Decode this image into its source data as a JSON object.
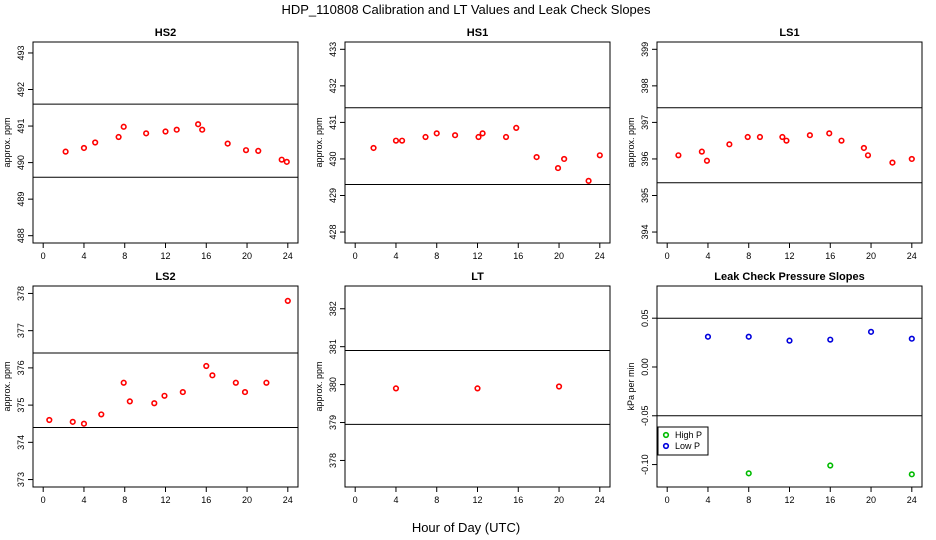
{
  "title": "HDP_110808  Calibration and LT Values and Leak Check Slopes",
  "xlabel": "Hour of Day (UTC)",
  "chart_data": [
    {
      "type": "scatter",
      "title": "HS2",
      "ylabel": "approx. ppm",
      "xlim": [
        -1,
        25
      ],
      "ylim": [
        487.8,
        493.3
      ],
      "xticks": [
        0,
        4,
        8,
        12,
        16,
        20,
        24
      ],
      "yticks": [
        488,
        489,
        490,
        491,
        492,
        493
      ],
      "hlines": [
        489.6,
        491.6
      ],
      "series": [
        {
          "color": "#ff0000",
          "x": [
            2.2,
            4,
            5.1,
            7.4,
            7.9,
            10.1,
            12,
            13.1,
            15.2,
            15.6,
            18.1,
            19.9,
            21.1,
            23.4,
            23.9
          ],
          "y": [
            490.3,
            490.4,
            490.55,
            490.7,
            490.98,
            490.8,
            490.85,
            490.9,
            491.05,
            490.9,
            490.52,
            490.34,
            490.32,
            490.08,
            490.02
          ]
        }
      ]
    },
    {
      "type": "scatter",
      "title": "HS1",
      "ylabel": "approx. ppm",
      "xlim": [
        -1,
        25
      ],
      "ylim": [
        427.7,
        433.2
      ],
      "xticks": [
        0,
        4,
        8,
        12,
        16,
        20,
        24
      ],
      "yticks": [
        428,
        429,
        430,
        431,
        432,
        433
      ],
      "hlines": [
        429.3,
        431.4
      ],
      "series": [
        {
          "color": "#ff0000",
          "x": [
            1.8,
            4,
            4.6,
            6.9,
            8,
            9.8,
            12.1,
            12.5,
            14.8,
            15.8,
            17.8,
            19.9,
            20.5,
            22.9,
            24
          ],
          "y": [
            430.3,
            430.5,
            430.5,
            430.6,
            430.7,
            430.65,
            430.6,
            430.7,
            430.6,
            430.85,
            430.05,
            429.75,
            430.0,
            429.4,
            430.1
          ]
        }
      ]
    },
    {
      "type": "scatter",
      "title": "LS1",
      "ylabel": "approx. ppm",
      "xlim": [
        -1,
        25
      ],
      "ylim": [
        393.7,
        399.2
      ],
      "xticks": [
        0,
        4,
        8,
        12,
        16,
        20,
        24
      ],
      "yticks": [
        394,
        395,
        396,
        397,
        398,
        399
      ],
      "hlines": [
        395.35,
        397.4
      ],
      "series": [
        {
          "color": "#ff0000",
          "x": [
            1.1,
            3.4,
            3.9,
            6.1,
            7.9,
            9.1,
            11.3,
            11.7,
            14,
            15.9,
            17.1,
            19.3,
            19.7,
            22.1,
            24
          ],
          "y": [
            396.1,
            396.2,
            395.95,
            396.4,
            396.6,
            396.6,
            396.6,
            396.5,
            396.65,
            396.7,
            396.5,
            396.3,
            396.1,
            395.9,
            396.0
          ]
        }
      ]
    },
    {
      "type": "scatter",
      "title": "LS2",
      "ylabel": "approx. ppm",
      "xlim": [
        -1,
        25
      ],
      "ylim": [
        372.8,
        378.2
      ],
      "xticks": [
        0,
        4,
        8,
        12,
        16,
        20,
        24
      ],
      "yticks": [
        373,
        374,
        375,
        376,
        377,
        378
      ],
      "hlines": [
        374.4,
        376.4
      ],
      "series": [
        {
          "color": "#ff0000",
          "x": [
            0.6,
            2.9,
            4,
            5.7,
            7.9,
            8.5,
            10.9,
            11.9,
            13.7,
            16,
            16.6,
            18.9,
            19.8,
            21.9,
            24
          ],
          "y": [
            374.6,
            374.55,
            374.5,
            374.75,
            375.6,
            375.1,
            375.05,
            375.25,
            375.35,
            376.05,
            375.8,
            375.6,
            375.35,
            375.6,
            377.8
          ]
        }
      ]
    },
    {
      "type": "scatter",
      "title": "LT",
      "ylabel": "approx. ppm",
      "xlim": [
        -1,
        25
      ],
      "ylim": [
        377.3,
        382.6
      ],
      "xticks": [
        0,
        4,
        8,
        12,
        16,
        20,
        24
      ],
      "yticks": [
        378,
        379,
        380,
        381,
        382
      ],
      "hlines": [
        378.95,
        380.9
      ],
      "series": [
        {
          "color": "#ff0000",
          "x": [
            4,
            12,
            20
          ],
          "y": [
            379.9,
            379.9,
            379.95
          ]
        }
      ]
    },
    {
      "type": "scatter",
      "title": "Leak Check Pressure Slopes",
      "ylabel": "kPa per min",
      "xlim": [
        -1,
        25
      ],
      "ylim": [
        -0.123,
        0.083
      ],
      "xticks": [
        0,
        4,
        8,
        12,
        16,
        20,
        24
      ],
      "yticks": [
        -0.1,
        -0.05,
        0.0,
        0.05
      ],
      "ytick_labels": [
        "-0.10",
        "-0.05",
        "0.00",
        "0.05"
      ],
      "hlines": [
        -0.05,
        0.05
      ],
      "legend": {
        "position": "bottom-left",
        "entries": [
          "High P",
          "Low P"
        ]
      },
      "series": [
        {
          "name": "High P",
          "color": "#00bb00",
          "x": [
            8,
            16,
            24
          ],
          "y": [
            -0.109,
            -0.101,
            -0.11
          ]
        },
        {
          "name": "Low P",
          "color": "#0000dd",
          "x": [
            4,
            8,
            12,
            16,
            20,
            24
          ],
          "y": [
            0.031,
            0.031,
            0.027,
            0.028,
            0.036,
            0.029
          ]
        }
      ]
    }
  ]
}
